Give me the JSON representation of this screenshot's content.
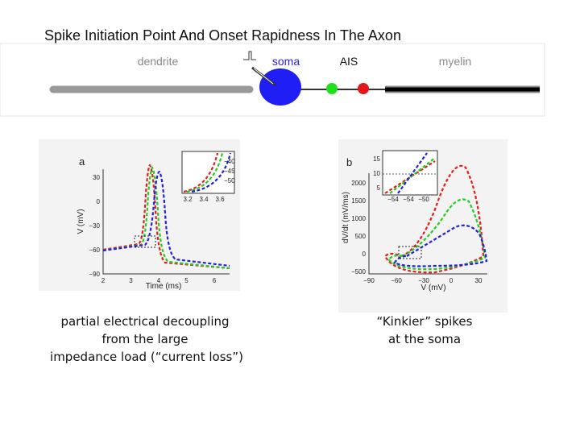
{
  "title": "Spike Initiation Point And Onset Rapidness In The Axon",
  "diagram": {
    "labels": [
      "dendrite",
      "soma",
      "AIS",
      "myelin"
    ]
  },
  "panels": [
    {
      "letter": "a",
      "ylabel": "V (mV)",
      "xlabel": "Time (ms)",
      "yticks": [
        "30",
        "0",
        "−30",
        "−60",
        "−90"
      ],
      "xticks": [
        "2",
        "3",
        "4",
        "5",
        "6"
      ],
      "inset_yticks": [
        "−40",
        "−45",
        "−50"
      ],
      "inset_xticks": [
        "3.2",
        "3.4",
        "3.6"
      ]
    },
    {
      "letter": "b",
      "ylabel": "dV/dt (mV/ms)",
      "xlabel": "V (mV)",
      "yticks": [
        "2000",
        "1500",
        "1000",
        "500",
        "0",
        "−500"
      ],
      "xticks": [
        "−90",
        "−60",
        "−30",
        "0",
        "30"
      ],
      "inset_yticks": [
        "15",
        "10",
        "5"
      ],
      "inset_xticks": [
        "−54",
        "−54",
        "−50"
      ]
    }
  ],
  "captions": [
    [
      "partial electrical decoupling",
      "from the large",
      "impedance  load (“current loss”)"
    ],
    [
      "“Kinkier” spikes",
      "at the soma"
    ]
  ]
}
